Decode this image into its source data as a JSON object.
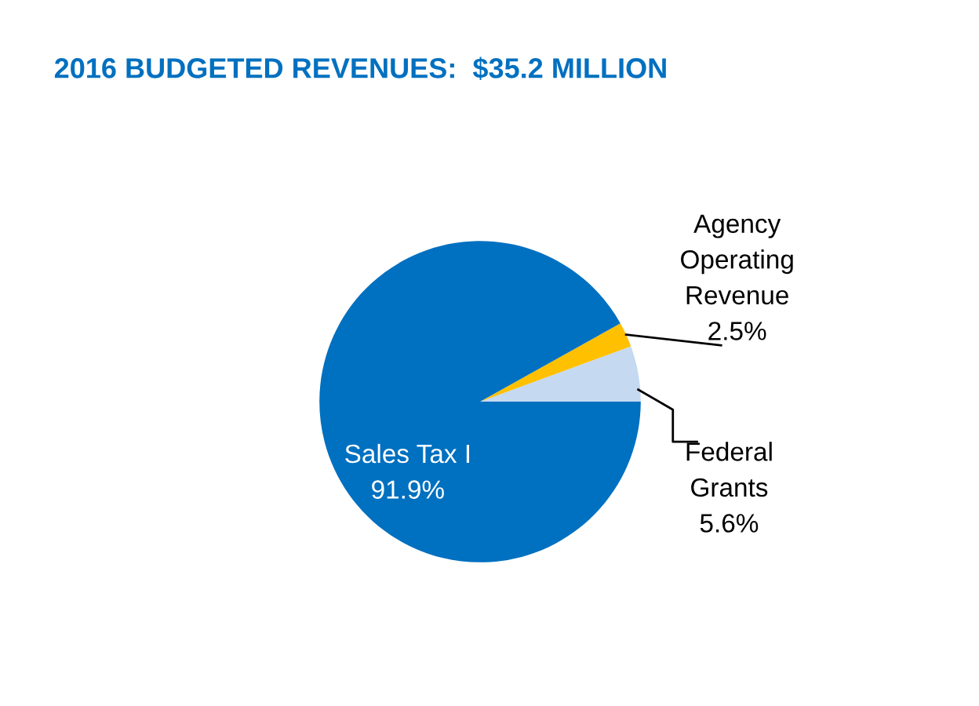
{
  "chart_data": {
    "type": "pie",
    "title": "2016 BUDGETED REVENUES:  $35.2 MILLION",
    "categories": [
      "Federal\nGrants",
      "Agency\nOperating\nRevenue",
      "Sales Tax I"
    ],
    "values": [
      5.6,
      2.5,
      91.9
    ],
    "value_labels": [
      "5.6%",
      "2.5%",
      "91.9%"
    ],
    "colors": [
      "#c5d9f1",
      "#ffc000",
      "#0070c0"
    ]
  }
}
